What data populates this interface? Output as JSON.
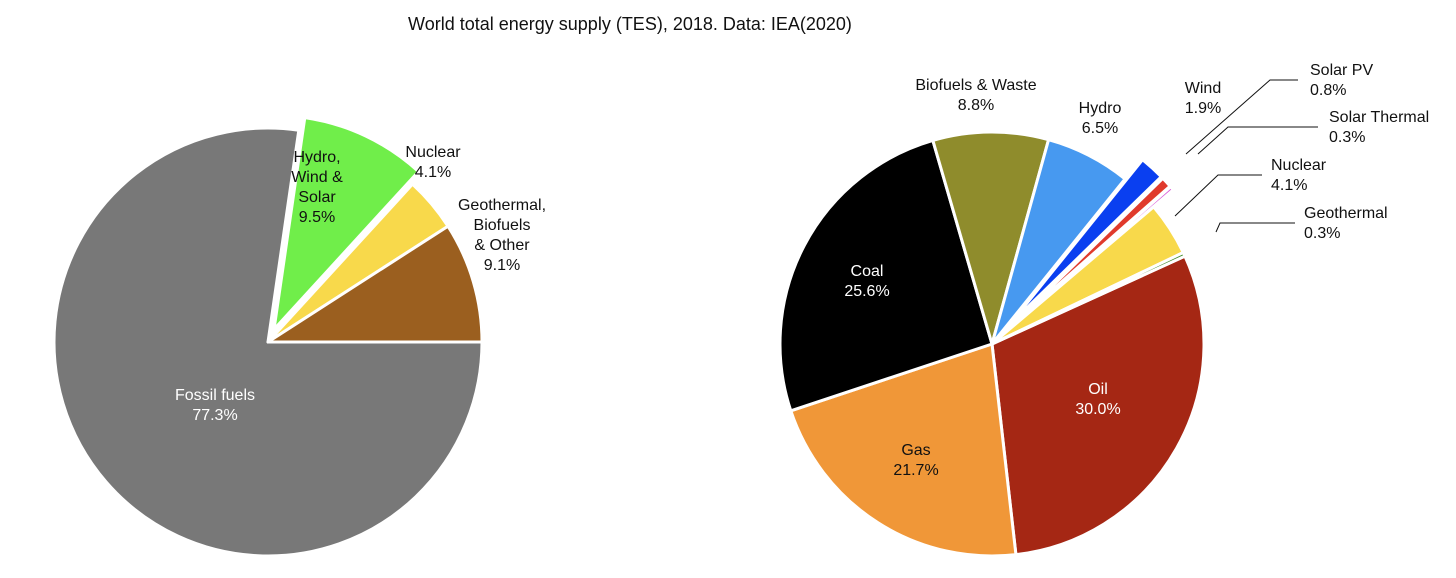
{
  "title": "World total energy supply (TES), 2018. Data: IEA(2020)",
  "chart_data": [
    {
      "type": "pie",
      "title": "World total energy supply (TES), 2018. Data: IEA(2020)",
      "slices": [
        {
          "name": "Fossil fuels",
          "label": [
            "Fossil fuels"
          ],
          "value": 77.3,
          "value_label": "77.3%",
          "color": "#787878",
          "exploded": false,
          "label_color": "#ffffff"
        },
        {
          "name": "Hydro, Wind & Solar",
          "label": [
            "Hydro,",
            "Wind &",
            "Solar"
          ],
          "value": 9.5,
          "value_label": "9.5%",
          "color": "#70ee4a",
          "exploded": true,
          "label_color": "#111111"
        },
        {
          "name": "Nuclear",
          "label": [
            "Nuclear"
          ],
          "value": 4.1,
          "value_label": "4.1%",
          "color": "#f8d94b",
          "exploded": false,
          "label_color": "#111111"
        },
        {
          "name": "Geothermal, Biofuels & Other",
          "label": [
            "Geothermal,",
            "Biofuels",
            "& Other"
          ],
          "value": 9.1,
          "value_label": "9.1%",
          "color": "#9b5f1f",
          "exploded": false,
          "label_color": "#111111"
        }
      ]
    },
    {
      "type": "pie",
      "title": "World total energy supply (TES), 2018. Data: IEA(2020)",
      "slices": [
        {
          "name": "Oil",
          "label": [
            "Oil"
          ],
          "value": 30.0,
          "value_label": "30.0%",
          "color": "#a52714",
          "exploded": false,
          "label_color": "#ffffff"
        },
        {
          "name": "Gas",
          "label": [
            "Gas"
          ],
          "value": 21.7,
          "value_label": "21.7%",
          "color": "#f09738",
          "exploded": false,
          "label_color": "#111111"
        },
        {
          "name": "Coal",
          "label": [
            "Coal"
          ],
          "value": 25.6,
          "value_label": "25.6%",
          "color": "#000000",
          "exploded": false,
          "label_color": "#ffffff"
        },
        {
          "name": "Biofuels & Waste",
          "label": [
            "Biofuels & Waste"
          ],
          "value": 8.8,
          "value_label": "8.8%",
          "color": "#8f8c2c",
          "exploded": false,
          "label_color": "#111111"
        },
        {
          "name": "Hydro",
          "label": [
            "Hydro"
          ],
          "value": 6.5,
          "value_label": "6.5%",
          "color": "#4799f0",
          "exploded": false,
          "label_color": "#111111"
        },
        {
          "name": "Wind",
          "label": [
            "Wind"
          ],
          "value": 1.9,
          "value_label": "1.9%",
          "color": "#0a3ff0",
          "exploded": true,
          "label_color": "#111111"
        },
        {
          "name": "Solar PV",
          "label": [
            "Solar PV"
          ],
          "value": 0.8,
          "value_label": "0.8%",
          "color": "#e03a2c",
          "exploded": true,
          "label_color": "#111111"
        },
        {
          "name": "Solar Thermal",
          "label": [
            "Solar Thermal"
          ],
          "value": 0.3,
          "value_label": "0.3%",
          "color": "#d85bd8",
          "exploded": true,
          "label_color": "#111111"
        },
        {
          "name": "Nuclear",
          "label": [
            "Nuclear"
          ],
          "value": 4.1,
          "value_label": "4.1%",
          "color": "#f8d94b",
          "exploded": false,
          "label_color": "#111111"
        },
        {
          "name": "Geothermal",
          "label": [
            "Geothermal"
          ],
          "value": 0.3,
          "value_label": "0.3%",
          "color": "#3f8a2a",
          "exploded": false,
          "label_color": "#111111"
        }
      ]
    }
  ]
}
